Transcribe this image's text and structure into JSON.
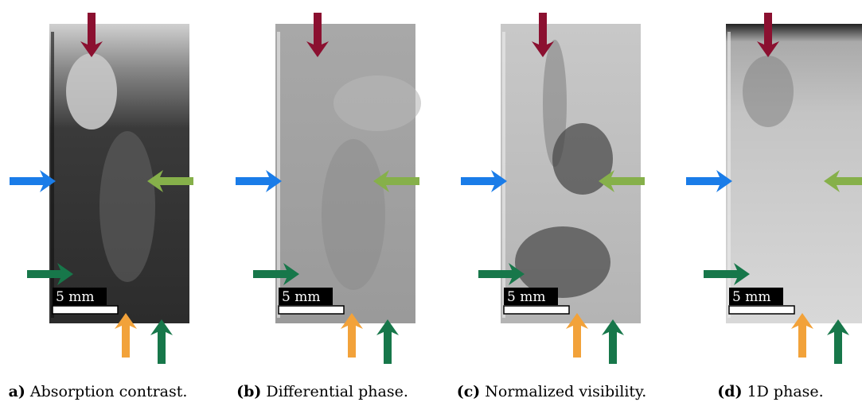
{
  "panels": [
    {
      "letter": "a)",
      "caption": "Absorption contrast.",
      "scale_bar": "5 mm"
    },
    {
      "letter": "(b)",
      "caption": "Differential phase.",
      "scale_bar": "5 mm"
    },
    {
      "letter": "(c)",
      "caption": "Normalized visibility.",
      "scale_bar": "5 mm"
    },
    {
      "letter": "(d)",
      "caption": "1D phase.",
      "scale_bar": "5 mm"
    }
  ]
}
